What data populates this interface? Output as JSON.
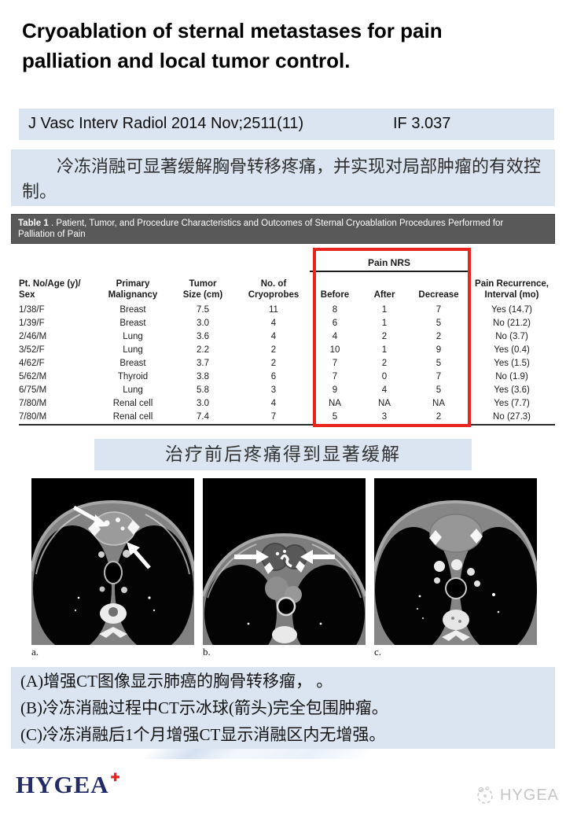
{
  "slide": {
    "title": "Cryoablation of sternal metastases for pain palliation and local tumor control.",
    "citation": {
      "journal": "J Vasc Interv Radiol 2014 Nov;2511(11)",
      "impact_factor": "IF 3.037"
    },
    "summary_cn": "冷冻消融可显著缓解胸骨转移疼痛，并实现对局部肿瘤的有效控制。",
    "table": {
      "title_prefix": "Table 1",
      "title_rest": " . Patient, Tumor, and Procedure Characteristics and Outcomes of Sternal Cryoablation Procedures Performed for Palliation of Pain",
      "spanner": "Pain NRS",
      "headers": [
        "Pt. No/Age (y)/\nSex",
        "Primary\nMalignancy",
        "Tumor\nSize (cm)",
        "No. of\nCryoprobes",
        "Before",
        "After",
        "Decrease",
        "Pain Recurrence,\nInterval (mo)"
      ],
      "rows": [
        [
          "1/38/F",
          "Breast",
          "7.5",
          "11",
          "8",
          "1",
          "7",
          "Yes (14.7)"
        ],
        [
          "1/39/F",
          "Breast",
          "3.0",
          "4",
          "6",
          "1",
          "5",
          "No (21.2)"
        ],
        [
          "2/46/M",
          "Lung",
          "3.6",
          "4",
          "4",
          "2",
          "2",
          "No (3.7)"
        ],
        [
          "3/52/F",
          "Lung",
          "2.2",
          "2",
          "10",
          "1",
          "9",
          "Yes (0.4)"
        ],
        [
          "4/62/F",
          "Breast",
          "3.7",
          "2",
          "7",
          "2",
          "5",
          "Yes (1.5)"
        ],
        [
          "5/62/M",
          "Thyroid",
          "3.8",
          "6",
          "7",
          "0",
          "7",
          "No (1.9)"
        ],
        [
          "6/75/M",
          "Lung",
          "5.8",
          "3",
          "9",
          "4",
          "5",
          "Yes (3.6)"
        ],
        [
          "7/80/M",
          "Renal cell",
          "3.0",
          "4",
          "NA",
          "NA",
          "NA",
          "Yes (7.7)"
        ],
        [
          "7/80/M",
          "Renal cell",
          "7.4",
          "7",
          "5",
          "3",
          "2",
          "No (27.3)"
        ]
      ]
    },
    "highlight_cn": "治疗前后疼痛得到显著缓解",
    "figures": [
      {
        "label": "a."
      },
      {
        "label": "b."
      },
      {
        "label": "c."
      }
    ],
    "caption_lines": [
      "(A)增强CT图像显示肺癌的胸骨转移瘤， 。",
      "(B)冷冻消融过程中CT示冰球(箭头)完全包围肿瘤。",
      "(C)冷冻消融后1个月增强CT显示消融区内无增强。"
    ],
    "footer": {
      "logo_text": "HYGEA",
      "logo_mark": "✚",
      "watermark_text": "HYGEA"
    },
    "colors": {
      "light_blue": "#dbe5f1",
      "table_bar_gray": "#595959",
      "highlight_red": "#ea241e",
      "footer_teal": "#009e96",
      "footer_navy": "#19124e",
      "logo_navy": "#232b66"
    }
  }
}
